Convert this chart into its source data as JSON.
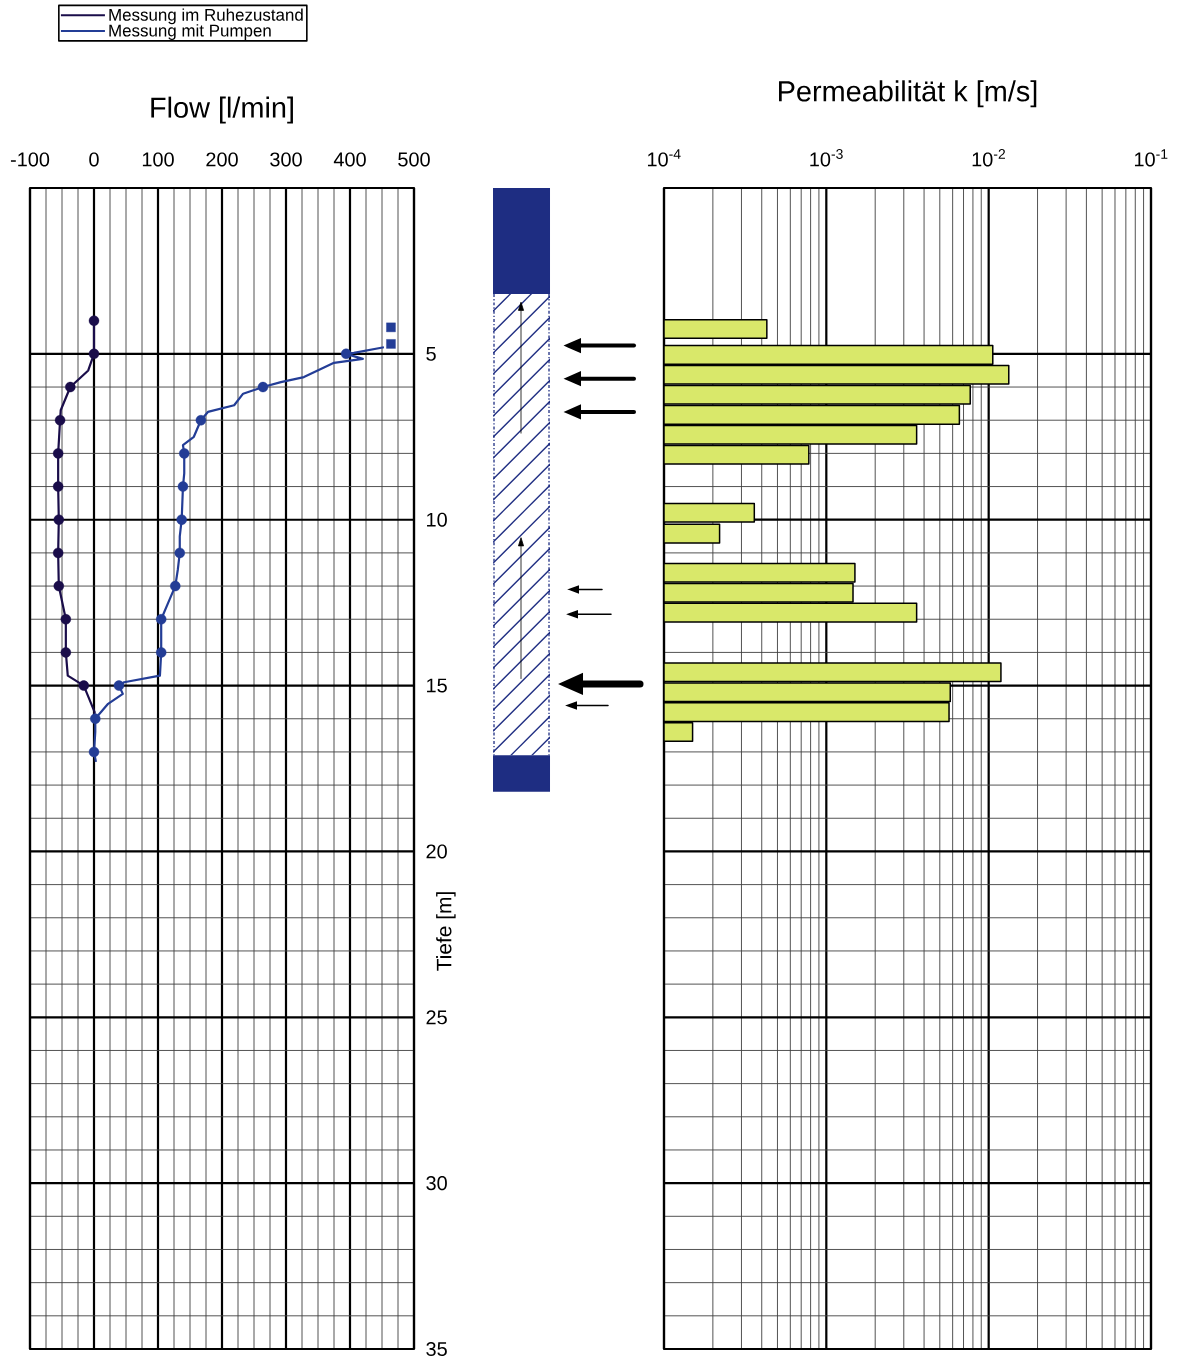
{
  "chart_data": [
    {
      "type": "line",
      "xlabel": "Flow [l/min]",
      "ylabel": "Tiefe [m]",
      "xlim": [
        -100,
        500
      ],
      "xticks": [
        -100,
        0,
        100,
        200,
        300,
        400,
        500
      ],
      "ylim": [
        35,
        0
      ],
      "yticks": [
        5,
        10,
        15,
        20,
        25,
        30,
        35
      ],
      "grid": true,
      "legend": "top left",
      "series": [
        {
          "name": "Messung im Ruhezustand",
          "color": "#1a0d4a",
          "type": "line",
          "marker": "none",
          "x": [
            0,
            0,
            -9,
            -37,
            -52,
            -53,
            -56,
            -56,
            -55,
            -56,
            -55,
            -44,
            -44,
            -41,
            -16,
            1,
            0
          ],
          "values": [
            4.0,
            5.0,
            5.5,
            6.0,
            6.7,
            7.0,
            8.0,
            9.0,
            10.0,
            11.0,
            12.0,
            13.0,
            14.0,
            14.7,
            15.0,
            15.8,
            16.0
          ]
        },
        {
          "name": "Messung mit Pumpen",
          "color": "#233d96",
          "type": "line",
          "marker": "none",
          "x": [
            453,
            406,
            394,
            420,
            375,
            328,
            292,
            264,
            233,
            219,
            178,
            167,
            156,
            139,
            141,
            141,
            139,
            138,
            137,
            134,
            134,
            131,
            127,
            116,
            105,
            105,
            103,
            47,
            39,
            45,
            22,
            2,
            2,
            0,
            3
          ],
          "values": [
            4.8,
            4.97,
            5.0,
            5.15,
            5.27,
            5.7,
            5.85,
            6.0,
            6.2,
            6.55,
            6.75,
            7.0,
            7.5,
            7.75,
            8.0,
            8.6,
            9.0,
            9.5,
            10.0,
            10.5,
            11.0,
            11.5,
            12.0,
            12.5,
            13.0,
            14.0,
            14.7,
            14.9,
            15.0,
            15.25,
            15.55,
            16.0,
            16.4,
            17.0,
            17.3
          ]
        },
        {
          "color": "#1a0d4a",
          "type": "scatter",
          "marker": "circle",
          "x": [
            0,
            0,
            -37,
            -53,
            -56,
            -56,
            -55,
            -56,
            -55,
            -44,
            -44,
            -16
          ],
          "values": [
            4,
            5,
            6,
            7,
            8,
            9,
            10,
            11,
            12,
            13,
            14,
            15
          ]
        },
        {
          "color": "#233d96",
          "type": "scatter",
          "marker": "circle",
          "x": [
            394,
            264,
            167,
            141,
            139,
            137,
            134,
            127,
            105,
            105,
            39,
            2,
            0
          ],
          "values": [
            5,
            6,
            7,
            8,
            9,
            10,
            11,
            12,
            13,
            14,
            15,
            16,
            17
          ]
        },
        {
          "color": "#233d96",
          "type": "scatter",
          "marker": "square",
          "x": [
            464,
            464
          ],
          "values": [
            4.2,
            4.7
          ]
        }
      ]
    },
    {
      "type": "bar",
      "orientation": "horizontal",
      "xlabel": "Permeabilität  k  [m/s]",
      "color": "#d9e86a",
      "log": "x",
      "xlim": [
        0.0001,
        0.1
      ],
      "xticks": [
        {
          "value": 0.0001,
          "label": "10$^{-4}$"
        },
        {
          "value": 0.001,
          "label": "10$^{-3}$"
        },
        {
          "value": 0.01,
          "label": "10$^{-2}$"
        },
        {
          "value": 0.1,
          "label": "10$^{-1}$"
        }
      ],
      "ylim": [
        35,
        0
      ],
      "yticks": [
        5,
        10,
        15,
        20,
        25,
        30,
        35
      ],
      "tick_labels": "x",
      "grid": true,
      "x": [
        4.25,
        5.03,
        5.63,
        6.23,
        6.84,
        7.44,
        8.04,
        9.79,
        10.42,
        11.6,
        12.2,
        12.8,
        14.6,
        15.2,
        15.8,
        16.4
      ],
      "values": [
        0.00043,
        0.0106,
        0.0133,
        0.0077,
        0.0066,
        0.0036,
        0.00078,
        0.00036,
        0.00022,
        0.0015,
        0.00146,
        0.0036,
        0.0119,
        0.0058,
        0.0057,
        0.00015
      ]
    }
  ]
}
